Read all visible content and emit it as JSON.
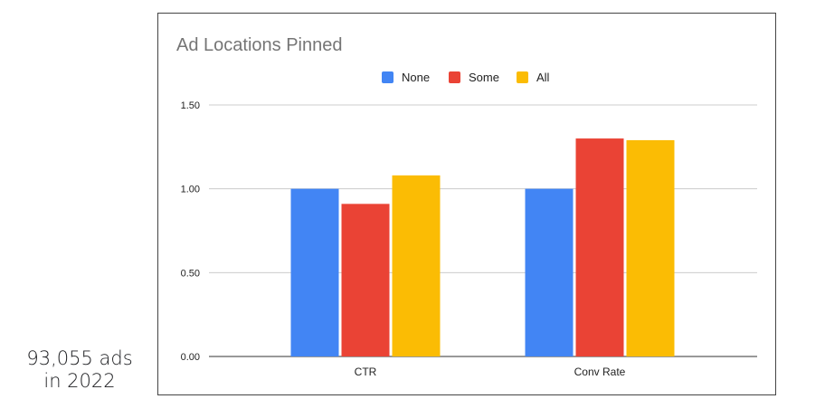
{
  "caption": {
    "line1": "93,055 ads",
    "line2": "in 2022"
  },
  "chart_data": {
    "type": "bar",
    "title": "Ad Locations Pinned",
    "categories": [
      "CTR",
      "Conv Rate"
    ],
    "series": [
      {
        "name": "None",
        "values": [
          1.0,
          1.0
        ],
        "color": "#4285F4"
      },
      {
        "name": "Some",
        "values": [
          0.91,
          1.3
        ],
        "color": "#EA4335"
      },
      {
        "name": "All",
        "values": [
          1.08,
          1.29
        ],
        "color": "#FBBC04"
      }
    ],
    "yticks": [
      "0.00",
      "0.50",
      "1.00",
      "1.50"
    ],
    "ylim": [
      0,
      1.5
    ],
    "grid": true,
    "legend_position": "top"
  }
}
